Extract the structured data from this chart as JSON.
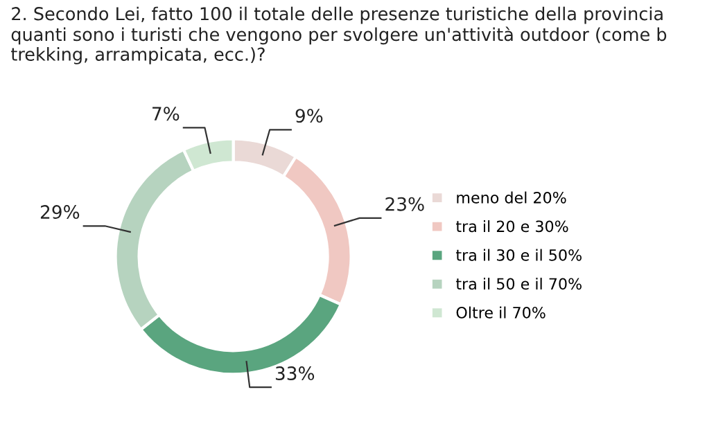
{
  "chart_data": {
    "type": "donut",
    "title": "2. Secondo Lei, fatto 100 il totale delle presenze turistiche della provincia quanti sono i turisti che vengono per svolgere un'attività outdoor (come b trekking, arrampicata, ecc.)?",
    "categories": [
      "meno del 20%",
      "tra il 20 e 30%",
      "tra il 30 e il 50%",
      "tra il 50 e il 70%",
      "Oltre il 70%"
    ],
    "values": [
      9,
      23,
      33,
      29,
      7
    ],
    "colors": [
      "#ead9d6",
      "#f0c8c2",
      "#5aa57f",
      "#b6d3bf",
      "#cfe7d2"
    ],
    "value_labels": [
      "9%",
      "23%",
      "33%",
      "29%",
      "7%"
    ],
    "legend": "right"
  }
}
